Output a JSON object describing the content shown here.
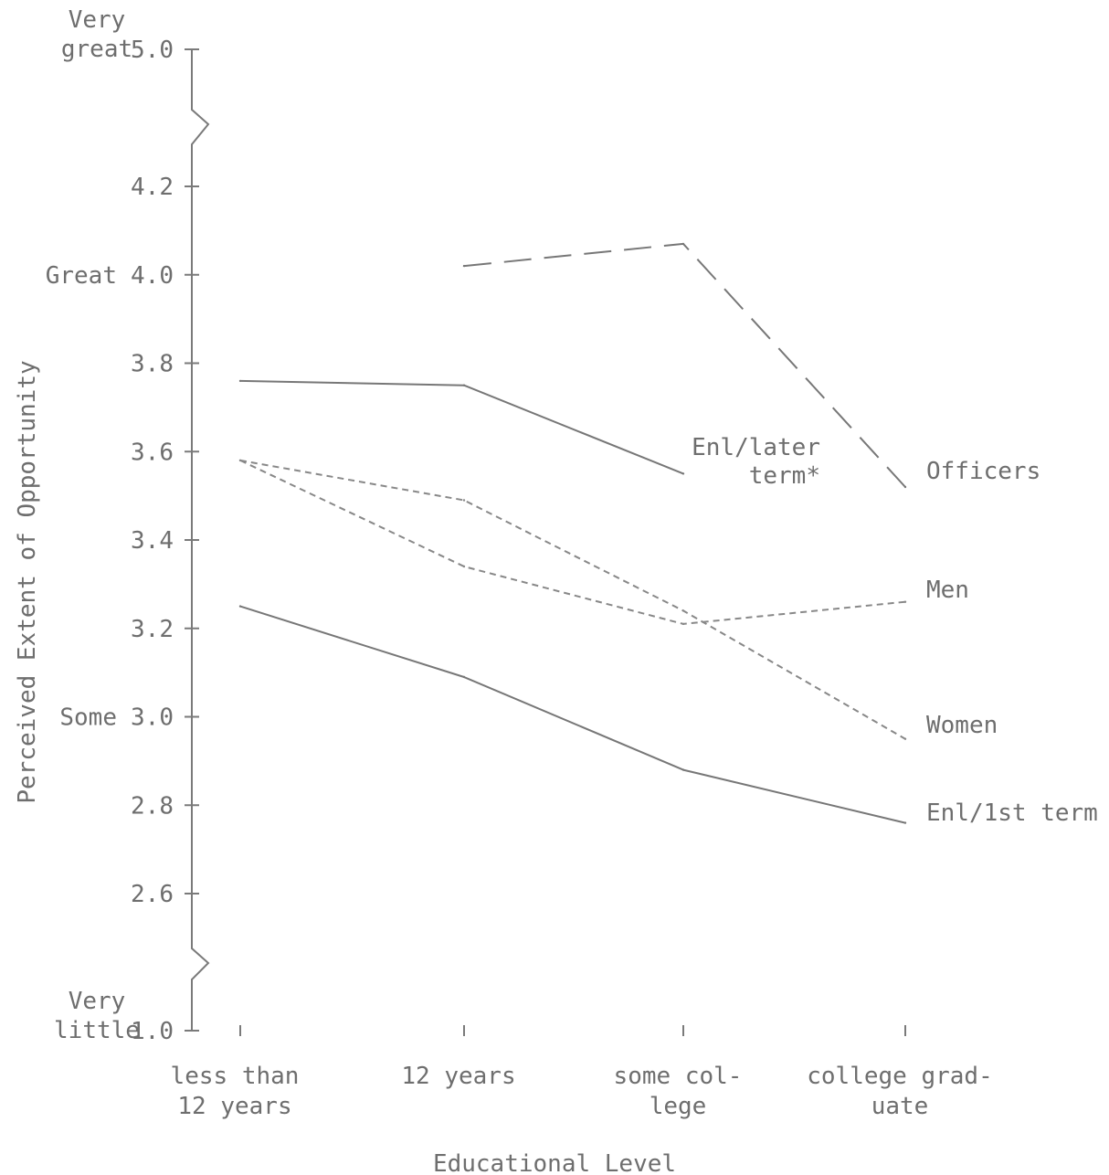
{
  "chart_data": {
    "type": "line",
    "title": "",
    "xlabel": "Educational Level",
    "ylabel": "Perceived Extent of Opportunity",
    "categories": [
      [
        "less than",
        "12 years"
      ],
      [
        "12 years"
      ],
      [
        "some col-",
        "lege"
      ],
      [
        "college grad-",
        "uate"
      ]
    ],
    "y_ticks": [
      {
        "value": 1.0,
        "label": "1.0",
        "desc": [
          "Very",
          "little"
        ]
      },
      {
        "value": 2.6,
        "label": "2.6"
      },
      {
        "value": 2.8,
        "label": "2.8"
      },
      {
        "value": 3.0,
        "label": "3.0",
        "desc": [
          "Some"
        ]
      },
      {
        "value": 3.2,
        "label": "3.2"
      },
      {
        "value": 3.4,
        "label": "3.4"
      },
      {
        "value": 3.6,
        "label": "3.6"
      },
      {
        "value": 3.8,
        "label": "3.8"
      },
      {
        "value": 4.0,
        "label": "4.0",
        "desc": [
          "Great"
        ]
      },
      {
        "value": 4.2,
        "label": "4.2"
      },
      {
        "value": 5.0,
        "label": "5.0",
        "desc": [
          "Very",
          "great"
        ]
      }
    ],
    "axis_breaks": [
      "between 4.2 and 5.0",
      "between 1.0 and 2.6"
    ],
    "ylim_main": [
      2.6,
      4.2
    ],
    "series": [
      {
        "name": "Officers",
        "label_lines": [
          "Officers"
        ],
        "style": "long-dash",
        "color": "#777777",
        "values": [
          null,
          4.02,
          4.07,
          3.52
        ]
      },
      {
        "name": "Enl/later term*",
        "label_lines": [
          "Enl/later",
          "term*"
        ],
        "style": "solid",
        "color": "#777777",
        "values": [
          3.76,
          3.75,
          3.55,
          null
        ]
      },
      {
        "name": "Men",
        "label_lines": [
          "Men"
        ],
        "style": "short-dash",
        "color": "#888888",
        "values": [
          3.58,
          3.34,
          3.21,
          3.26
        ]
      },
      {
        "name": "Women",
        "label_lines": [
          "Women"
        ],
        "style": "short-dash",
        "color": "#888888",
        "values": [
          3.58,
          3.49,
          3.24,
          2.95
        ]
      },
      {
        "name": "Enl/1st term",
        "label_lines": [
          "Enl/1st term"
        ],
        "style": "solid",
        "color": "#777777",
        "values": [
          3.25,
          3.09,
          2.88,
          2.76
        ]
      }
    ],
    "grid": false,
    "legend": "inline labels at line ends"
  }
}
